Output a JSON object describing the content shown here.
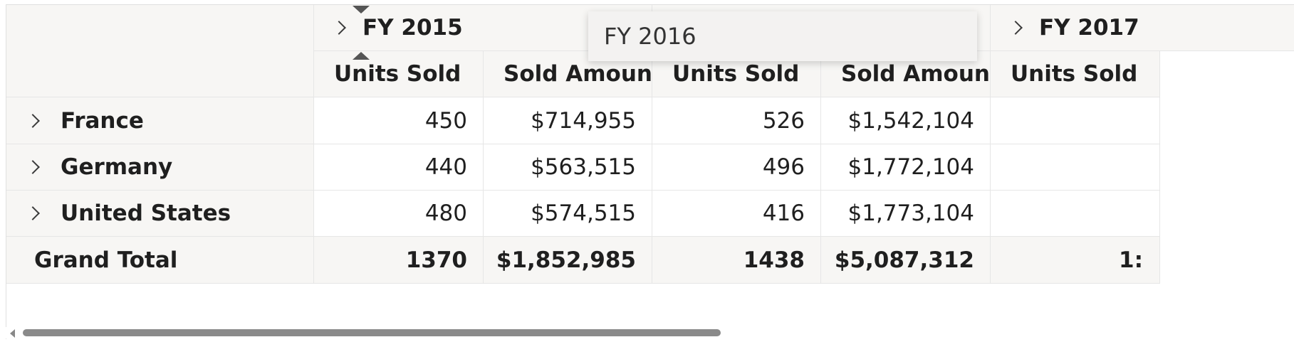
{
  "column_groups": [
    {
      "label": "FY 2015"
    },
    {
      "label": "FY 2016"
    },
    {
      "label": "FY 2017"
    }
  ],
  "drag_tooltip": "FY 2016",
  "measures": [
    "Units Sold",
    "Sold Amount",
    "Units Sold",
    "Sold Amount",
    "Units Sold"
  ],
  "rows": [
    {
      "label": "France",
      "values": [
        "450",
        "$714,955",
        "526",
        "$1,542,104",
        ""
      ]
    },
    {
      "label": "Germany",
      "values": [
        "440",
        "$563,515",
        "496",
        "$1,772,104",
        ""
      ]
    },
    {
      "label": "United States",
      "values": [
        "480",
        "$574,515",
        "416",
        "$1,773,104",
        ""
      ]
    }
  ],
  "grand_total": {
    "label": "Grand Total",
    "values": [
      "1370",
      "$1,852,985",
      "1438",
      "$5,087,312",
      "1:"
    ]
  }
}
